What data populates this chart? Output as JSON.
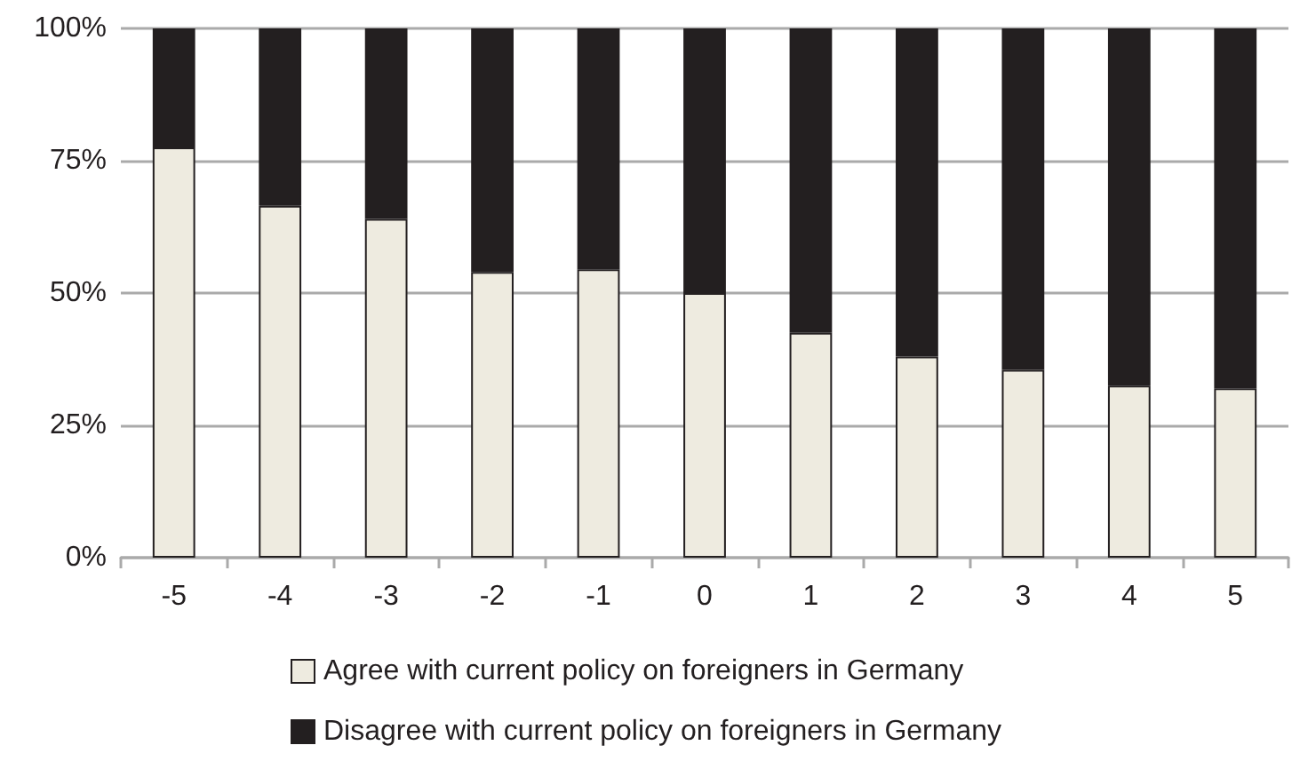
{
  "chart_data": {
    "type": "bar",
    "stacked": true,
    "categories": [
      "-5",
      "-4",
      "-3",
      "-2",
      "-1",
      "0",
      "1",
      "2",
      "3",
      "4",
      "5"
    ],
    "series": [
      {
        "name": "Agree with current policy on foreigners in Germany",
        "color": "#eeebe0",
        "values": [
          77.5,
          66.5,
          64,
          54,
          54.5,
          50,
          42.5,
          38,
          35.5,
          32.5,
          32
        ]
      },
      {
        "name": "Disagree with current policy on foreigners in Germany",
        "color": "#231f20",
        "values": [
          22.5,
          33.5,
          36,
          46,
          45.5,
          50,
          57.5,
          62,
          64.5,
          67.5,
          68
        ]
      }
    ],
    "ylim": [
      0,
      100
    ],
    "yticks": [
      {
        "value": 0,
        "label": "0%"
      },
      {
        "value": 25,
        "label": "25%"
      },
      {
        "value": 50,
        "label": "50%"
      },
      {
        "value": 75,
        "label": "75%"
      },
      {
        "value": 100,
        "label": "100%"
      }
    ],
    "grid": "y",
    "legend": "bottom"
  }
}
